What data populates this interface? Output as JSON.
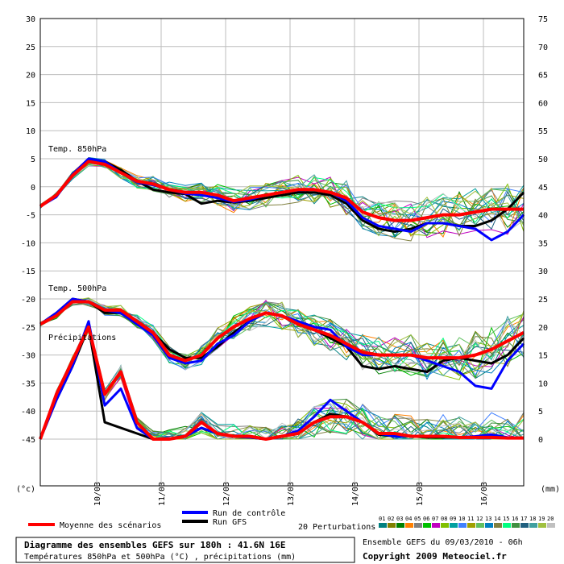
{
  "chart_data": {
    "type": "line",
    "title": "Diagramme des ensembles GEFS sur 180h : 41.6N 16E",
    "subtitle": "Températures 850hPa et 500hPa (°C) , précipitations (mm)",
    "left_axis_unit": "(°c)",
    "right_axis_unit": "(mm)",
    "left_ticks": [
      30,
      25,
      20,
      15,
      10,
      5,
      0,
      -5,
      -10,
      -15,
      -20,
      -25,
      -30,
      -35,
      -40,
      -45
    ],
    "right_ticks": [
      75,
      70,
      65,
      60,
      55,
      50,
      45,
      40,
      35,
      30,
      25,
      20,
      15,
      10,
      5,
      0
    ],
    "x_dates": [
      "10/03",
      "11/03",
      "12/03",
      "13/03",
      "14/03",
      "15/03",
      "16/03"
    ],
    "x_range_hours": [
      0,
      180
    ],
    "section_labels": {
      "t850": "Temp. 850hPa",
      "t500": "Temp. 500hPa",
      "precip": "Précipitations"
    },
    "legend": {
      "mean": "Moyenne des scénarios",
      "control": "Run de contrôle",
      "gfs": "Run GFS",
      "perturbations": "20 Perturbations",
      "perturbation_codes": [
        "01",
        "02",
        "03",
        "04",
        "05",
        "06",
        "07",
        "08",
        "09",
        "10",
        "11",
        "12",
        "13",
        "14",
        "15",
        "16",
        "17",
        "18",
        "19",
        "20"
      ]
    },
    "footer": {
      "ensemble": "Ensemble GEFS du 09/03/2010 - 06h",
      "copyright": "Copyright 2009 Meteociel.fr"
    },
    "colors": {
      "mean": "#ff0000",
      "control": "#0000ff",
      "gfs": "#000000",
      "perturbations": [
        "#008080",
        "#808000",
        "#008000",
        "#ff8000",
        "#808080",
        "#00c000",
        "#c000c0",
        "#80c000",
        "#00a0a0",
        "#4080ff",
        "#a0a000",
        "#60c060",
        "#0080c0",
        "#808040",
        "#00ff80",
        "#409040",
        "#206080",
        "#40a0a0",
        "#a0c040",
        "#c0c0c0"
      ]
    },
    "series": [
      {
        "name": "Temp. 850hPa - Moyenne des scénarios",
        "kind": "mean",
        "x_hours": [
          0,
          6,
          12,
          18,
          24,
          30,
          36,
          42,
          48,
          54,
          60,
          66,
          72,
          78,
          84,
          90,
          96,
          102,
          108,
          114,
          120,
          126,
          132,
          138,
          144,
          150,
          156,
          162,
          168,
          174,
          180
        ],
        "values": [
          -3.5,
          -1.5,
          2,
          4.5,
          4,
          2.5,
          1,
          0.5,
          -0.5,
          -1,
          -1,
          -1.5,
          -2.5,
          -2,
          -1.5,
          -1,
          -0.5,
          -0.5,
          -1,
          -2,
          -4.5,
          -5.5,
          -6,
          -6,
          -5.5,
          -5,
          -5,
          -4.5,
          -4,
          -4,
          -4
        ]
      },
      {
        "name": "Temp. 850hPa - Run de contrôle",
        "kind": "control",
        "x_hours": [
          0,
          6,
          12,
          18,
          24,
          30,
          36,
          42,
          48,
          54,
          60,
          66,
          72,
          78,
          84,
          90,
          96,
          102,
          108,
          114,
          120,
          126,
          132,
          138,
          144,
          150,
          156,
          162,
          168,
          174,
          180
        ],
        "values": [
          -3.5,
          -1.8,
          2.2,
          5,
          4.5,
          2.5,
          0.8,
          0.3,
          -0.5,
          -1.2,
          -1.5,
          -2,
          -2.7,
          -2.3,
          -1.5,
          -1,
          -0.6,
          -0.5,
          -1,
          -2.5,
          -5.5,
          -7,
          -7.5,
          -8,
          -6.5,
          -6.5,
          -7,
          -7.5,
          -9.5,
          -8,
          -5
        ]
      },
      {
        "name": "Temp. 850hPa - Run GFS",
        "kind": "gfs",
        "x_hours": [
          0,
          6,
          12,
          18,
          24,
          30,
          36,
          42,
          48,
          54,
          60,
          66,
          72,
          78,
          84,
          90,
          96,
          102,
          108,
          114,
          120,
          126,
          132,
          138,
          144,
          150,
          156,
          162,
          168,
          174,
          180
        ],
        "values": [
          -3.5,
          -1.5,
          2,
          5,
          4.5,
          3,
          1,
          -0.5,
          -1,
          -1.3,
          -3,
          -2.5,
          -2.8,
          -2.5,
          -2,
          -1.5,
          -1,
          -1,
          -1.5,
          -3,
          -6,
          -7.5,
          -8,
          -7.5,
          -6.5,
          -6.5,
          -7,
          -7,
          -6,
          -4,
          -1
        ]
      },
      {
        "name": "Temp. 500hPa - Moyenne des scénarios",
        "kind": "mean",
        "x_hours": [
          0,
          6,
          12,
          18,
          24,
          30,
          36,
          42,
          48,
          54,
          60,
          66,
          72,
          78,
          84,
          90,
          96,
          102,
          108,
          114,
          120,
          126,
          132,
          138,
          144,
          150,
          156,
          162,
          168,
          174,
          180
        ],
        "values": [
          -24.5,
          -23,
          -20.5,
          -20.5,
          -22,
          -22,
          -24,
          -26,
          -30,
          -31,
          -30,
          -27,
          -25,
          -23.5,
          -22.5,
          -23,
          -24.5,
          -25.5,
          -26.5,
          -28,
          -29.5,
          -30,
          -30,
          -30,
          -30.5,
          -30.5,
          -30.5,
          -30,
          -29,
          -27.5,
          -26
        ]
      },
      {
        "name": "Temp. 500hPa - Run de contrôle",
        "kind": "control",
        "x_hours": [
          0,
          6,
          12,
          18,
          24,
          30,
          36,
          42,
          48,
          54,
          60,
          66,
          72,
          78,
          84,
          90,
          96,
          102,
          108,
          114,
          120,
          126,
          132,
          138,
          144,
          150,
          156,
          162,
          168,
          174,
          180
        ],
        "values": [
          -24.5,
          -22.5,
          -20,
          -20.5,
          -22,
          -22.5,
          -24.5,
          -26.5,
          -30.5,
          -31.5,
          -31,
          -28,
          -26.5,
          -24,
          -22.5,
          -23,
          -24,
          -25,
          -25.5,
          -28.5,
          -30,
          -30,
          -30,
          -30,
          -31,
          -32,
          -33,
          -35.5,
          -36,
          -31,
          -28
        ]
      },
      {
        "name": "Temp. 500hPa - Run GFS",
        "kind": "gfs",
        "x_hours": [
          0,
          6,
          12,
          18,
          24,
          30,
          36,
          42,
          48,
          54,
          60,
          66,
          72,
          78,
          84,
          90,
          96,
          102,
          108,
          114,
          120,
          126,
          132,
          138,
          144,
          150,
          156,
          162,
          168,
          174,
          180
        ],
        "values": [
          -24.5,
          -22.5,
          -20,
          -20.5,
          -22.5,
          -22.5,
          -24.5,
          -26,
          -29,
          -30.5,
          -30.5,
          -28.5,
          -26,
          -24,
          -22.5,
          -23,
          -24.5,
          -25.5,
          -27,
          -28.5,
          -32,
          -32.5,
          -32,
          -32.5,
          -33,
          -31,
          -30.5,
          -31,
          -31.5,
          -30,
          -27
        ]
      },
      {
        "name": "Précipitations - Moyenne des scénarios",
        "kind": "mean",
        "x_hours": [
          0,
          6,
          12,
          18,
          24,
          30,
          36,
          42,
          48,
          54,
          60,
          66,
          72,
          78,
          84,
          90,
          96,
          102,
          108,
          114,
          120,
          126,
          132,
          138,
          144,
          150,
          156,
          162,
          168,
          174,
          180
        ],
        "values": [
          0,
          8,
          14,
          20,
          8,
          12,
          3,
          0,
          0,
          0.5,
          3,
          1,
          0.5,
          0.5,
          0,
          0.5,
          1,
          3,
          4,
          4,
          3,
          1,
          1,
          0.5,
          0.5,
          0.5,
          0.3,
          0.3,
          0.3,
          0.2,
          0.2
        ]
      },
      {
        "name": "Précipitations - Run de contrôle",
        "kind": "control",
        "x_hours": [
          0,
          6,
          12,
          18,
          24,
          30,
          36,
          42,
          48,
          54,
          60,
          66,
          72,
          78,
          84,
          90,
          96,
          102,
          108,
          114,
          120,
          126,
          132,
          138,
          144,
          150,
          156,
          162,
          168,
          174,
          180
        ],
        "values": [
          0,
          7,
          13,
          21,
          6,
          9,
          2,
          0,
          0,
          0.5,
          2,
          1,
          0.5,
          0.3,
          0,
          0.5,
          1.5,
          4,
          7,
          5,
          3,
          1,
          0.5,
          0.5,
          0.5,
          0.5,
          0.3,
          0.5,
          0.8,
          0.3,
          0.2
        ]
      },
      {
        "name": "Précipitations - Run GFS",
        "kind": "gfs",
        "x_hours": [
          0,
          6,
          12,
          18,
          24,
          30,
          36,
          42,
          48,
          54,
          60,
          66,
          72,
          78,
          84,
          90,
          96,
          102,
          108,
          114,
          120,
          126,
          132,
          138,
          144,
          150,
          156,
          162,
          168,
          174,
          180
        ],
        "values": [
          0,
          7,
          13,
          20,
          3,
          2,
          1,
          0,
          0,
          0.5,
          2,
          1,
          0.5,
          0.3,
          0,
          0.5,
          1,
          3,
          4.5,
          4,
          3,
          0.8,
          0.5,
          0.5,
          0.3,
          0.3,
          0.3,
          0.3,
          0.3,
          0.2,
          0.2
        ]
      }
    ]
  }
}
